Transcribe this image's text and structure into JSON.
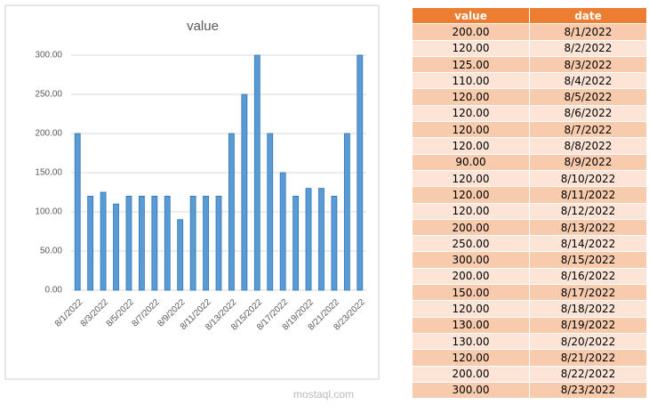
{
  "chart_data": {
    "type": "bar",
    "title": "value",
    "categories": [
      "8/1/2022",
      null,
      "8/3/2022",
      null,
      "8/5/2022",
      null,
      "8/7/2022",
      null,
      "8/9/2022",
      null,
      "8/11/2022",
      null,
      "8/13/2022",
      null,
      "8/15/2022",
      null,
      "8/17/2022",
      null,
      "8/19/2022",
      null,
      "8/21/2022",
      null,
      "8/23/2022"
    ],
    "values": [
      200,
      120,
      125,
      110,
      120,
      120,
      120,
      120,
      90,
      120,
      120,
      120,
      200,
      250,
      300,
      200,
      150,
      120,
      130,
      130,
      120,
      200,
      300
    ],
    "color": "#5b9bd5",
    "ylim": [
      0,
      300
    ],
    "yticks": [
      {
        "value": 0,
        "label": "0.00"
      },
      {
        "value": 50,
        "label": "50.00"
      },
      {
        "value": 100,
        "label": "100.00"
      },
      {
        "value": 150,
        "label": "150.00"
      },
      {
        "value": 200,
        "label": "200.00"
      },
      {
        "value": 250,
        "label": "250.00"
      },
      {
        "value": 300,
        "label": "300.00"
      }
    ],
    "grid": true
  },
  "table": {
    "header": [
      "value",
      "date"
    ],
    "rows": [
      [
        "200.00",
        "8/1/2022"
      ],
      [
        "120.00",
        "8/2/2022"
      ],
      [
        "125.00",
        "8/3/2022"
      ],
      [
        "110.00",
        "8/4/2022"
      ],
      [
        "120.00",
        "8/5/2022"
      ],
      [
        "120.00",
        "8/6/2022"
      ],
      [
        "120.00",
        "8/7/2022"
      ],
      [
        "120.00",
        "8/8/2022"
      ],
      [
        "90.00",
        "8/9/2022"
      ],
      [
        "120.00",
        "8/10/2022"
      ],
      [
        "120.00",
        "8/11/2022"
      ],
      [
        "120.00",
        "8/12/2022"
      ],
      [
        "200.00",
        "8/13/2022"
      ],
      [
        "250.00",
        "8/14/2022"
      ],
      [
        "300.00",
        "8/15/2022"
      ],
      [
        "200.00",
        "8/16/2022"
      ],
      [
        "150.00",
        "8/17/2022"
      ],
      [
        "120.00",
        "8/18/2022"
      ],
      [
        "130.00",
        "8/19/2022"
      ],
      [
        "130.00",
        "8/20/2022"
      ],
      [
        "120.00",
        "8/21/2022"
      ],
      [
        "200.00",
        "8/22/2022"
      ],
      [
        "300.00",
        "8/23/2022"
      ]
    ]
  },
  "watermark": "mostaql.com"
}
